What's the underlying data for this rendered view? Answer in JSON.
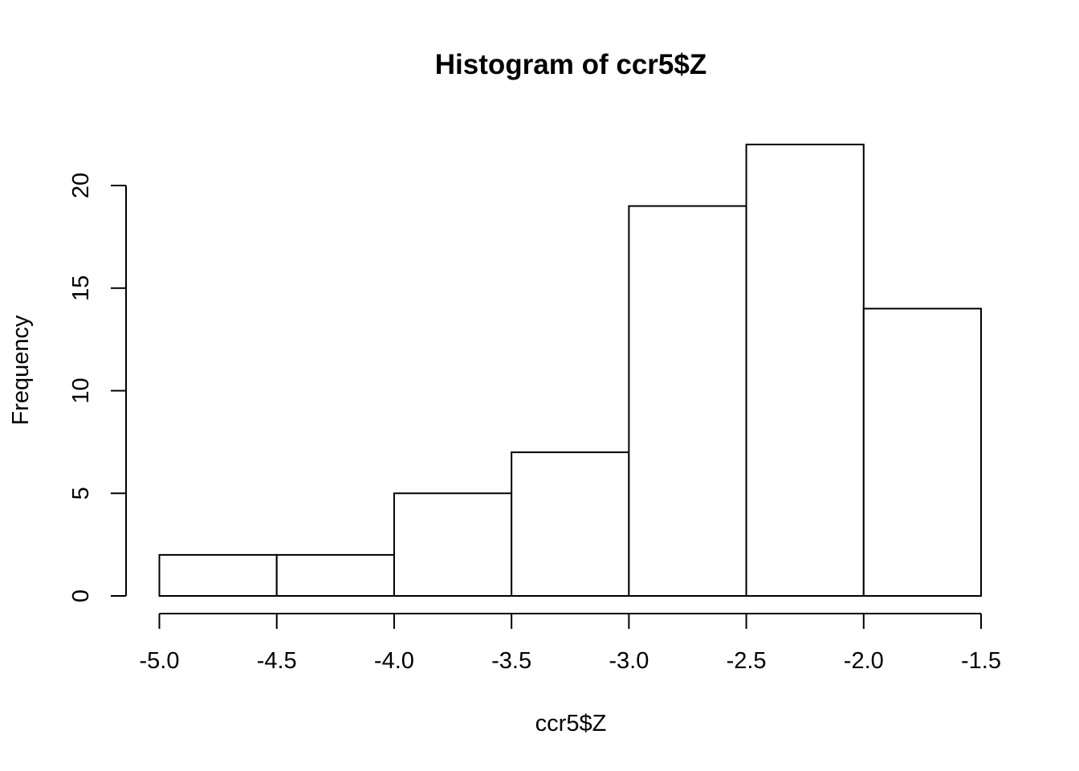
{
  "chart_data": {
    "type": "bar",
    "title": "Histogram of ccr5$Z",
    "xlabel": "ccr5$Z",
    "ylabel": "Frequency",
    "bins": [
      {
        "from": -5.0,
        "to": -4.5,
        "count": 2
      },
      {
        "from": -4.5,
        "to": -4.0,
        "count": 2
      },
      {
        "from": -4.0,
        "to": -3.5,
        "count": 5
      },
      {
        "from": -3.5,
        "to": -3.0,
        "count": 7
      },
      {
        "from": -3.0,
        "to": -2.5,
        "count": 19
      },
      {
        "from": -2.5,
        "to": -2.0,
        "count": 22
      },
      {
        "from": -2.0,
        "to": -1.5,
        "count": 14
      }
    ],
    "x_ticks": [
      -5.0,
      -4.5,
      -4.0,
      -3.5,
      -3.0,
      -2.5,
      -2.0,
      -1.5
    ],
    "x_tick_labels": [
      "-5.0",
      "-4.5",
      "-4.0",
      "-3.5",
      "-3.0",
      "-2.5",
      "-2.0",
      "-1.5"
    ],
    "y_ticks": [
      0,
      5,
      10,
      15,
      20
    ],
    "y_tick_labels": [
      "0",
      "5",
      "10",
      "15",
      "20"
    ],
    "xlim": [
      -5.0,
      -1.5
    ],
    "ylim": [
      0,
      22
    ],
    "grid": false,
    "legend": "none",
    "colors": {
      "bar_fill": "#ffffff",
      "bar_stroke": "#000000",
      "background": "#ffffff"
    }
  }
}
